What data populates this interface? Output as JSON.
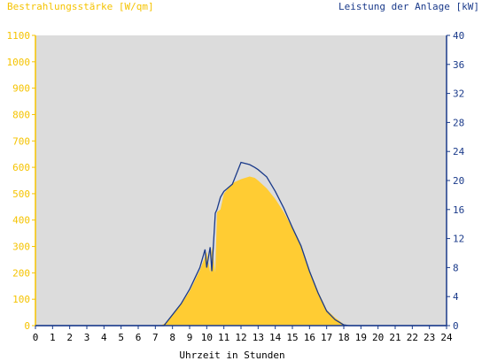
{
  "chart_data": {
    "type": "area",
    "left_axis_title": "Bestrahlungsstärke [W/qm]",
    "right_axis_title": "Leistung der Anlage [kW]",
    "xlabel": "Uhrzeit in Stunden",
    "x_range": [
      0,
      24
    ],
    "left_ylim": [
      0,
      1100
    ],
    "right_ylim": [
      0,
      40
    ],
    "x_ticks": [
      "0",
      "1",
      "2",
      "3",
      "4",
      "5",
      "6",
      "7",
      "8",
      "9",
      "10",
      "11",
      "12",
      "13",
      "14",
      "15",
      "16",
      "17",
      "18",
      "19",
      "20",
      "21",
      "22",
      "23",
      "24"
    ],
    "left_ticks": [
      "0",
      "100",
      "200",
      "300",
      "400",
      "500",
      "600",
      "700",
      "800",
      "900",
      "1000",
      "1100"
    ],
    "right_ticks": [
      "0",
      "4",
      "8",
      "12",
      "16",
      "20",
      "24",
      "28",
      "32",
      "36",
      "40"
    ],
    "colors": {
      "irradiance": "#ffcc33",
      "power": "#1a3a8a",
      "plot_bg": "#dcdcdc",
      "left_axis": "#f5c300",
      "right_axis": "#1a3a8a"
    },
    "series": [
      {
        "name": "Bestrahlungsstärke [W/qm]",
        "axis": "left",
        "x": [
          7.3,
          7.6,
          8.0,
          8.5,
          9.0,
          9.3,
          9.6,
          9.9,
          10.0,
          10.2,
          10.3,
          10.5,
          10.6,
          10.8,
          11.0,
          11.5,
          12.0,
          12.5,
          12.8,
          13.0,
          13.5,
          14.0,
          14.5,
          15.0,
          15.5,
          16.0,
          16.5,
          17.0,
          17.5,
          18.0,
          18.3
        ],
        "values": [
          0,
          10,
          40,
          80,
          130,
          170,
          210,
          260,
          280,
          200,
          300,
          200,
          430,
          440,
          500,
          540,
          555,
          565,
          560,
          550,
          520,
          480,
          430,
          370,
          300,
          210,
          130,
          60,
          30,
          5,
          0
        ]
      },
      {
        "name": "Leistung der Anlage [kW]",
        "axis": "right",
        "x": [
          7.5,
          8.0,
          8.5,
          9.0,
          9.3,
          9.6,
          9.9,
          10.0,
          10.2,
          10.3,
          10.5,
          10.6,
          10.8,
          11.0,
          11.5,
          12.0,
          12.5,
          12.8,
          13.0,
          13.5,
          14.0,
          14.5,
          15.0,
          15.5,
          16.0,
          16.5,
          17.0,
          17.5,
          18.0,
          18.3
        ],
        "values": [
          0,
          1.5,
          3.0,
          5.0,
          6.5,
          8.0,
          10.5,
          8.0,
          10.8,
          7.5,
          15.5,
          16.0,
          17.7,
          18.5,
          19.5,
          22.5,
          22.2,
          21.8,
          21.5,
          20.5,
          18.5,
          16.2,
          13.5,
          11.0,
          7.5,
          4.5,
          2.0,
          0.8,
          0.1,
          0
        ]
      }
    ]
  }
}
